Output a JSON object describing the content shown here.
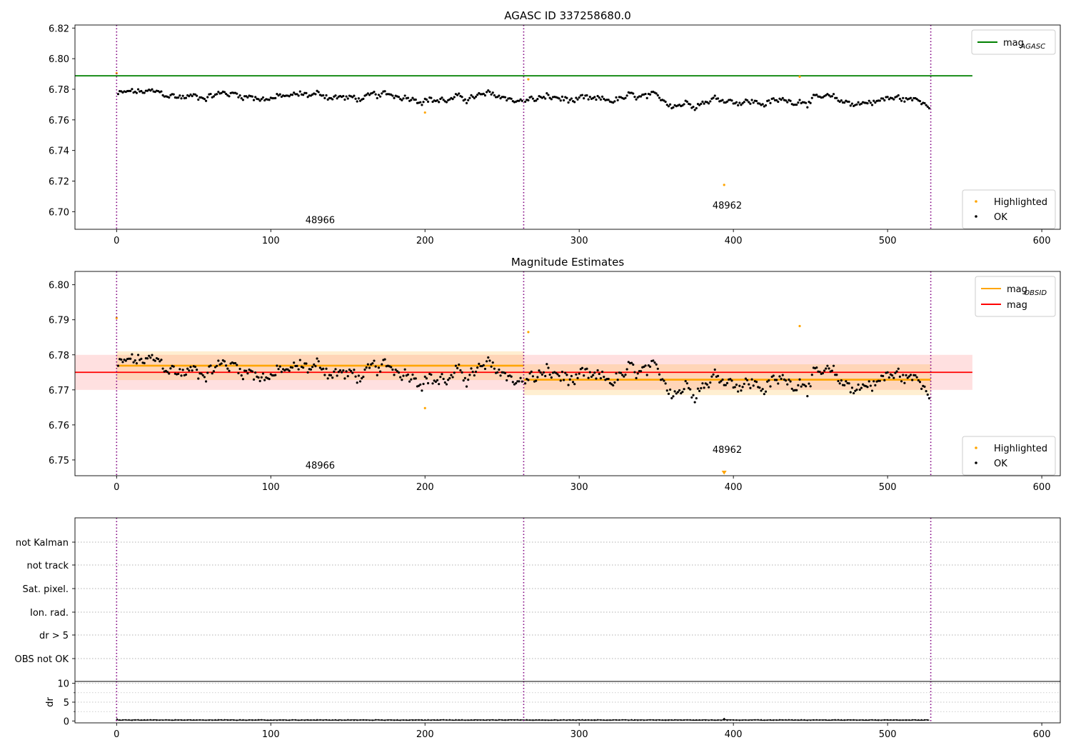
{
  "colors": {
    "agasc_line": "#008000",
    "obsid_line": "#ffa500",
    "mag_line": "#ff0000",
    "highlighted": "#ffa500",
    "ok": "#000000",
    "obs_boundary": "#800080",
    "grid": "#b0b0b0"
  },
  "chart_data": [
    {
      "type": "scatter",
      "title": "AGASC ID 337258680.0",
      "xlim": [
        -27,
        612
      ],
      "ylim": [
        6.6885,
        6.822
      ],
      "xticks": [
        "0",
        "100",
        "200",
        "300",
        "400",
        "500",
        "600"
      ],
      "yticks": [
        "6.70",
        "6.72",
        "6.74",
        "6.76",
        "6.78",
        "6.80",
        "6.82"
      ],
      "obs_boundaries": [
        0,
        264,
        528
      ],
      "obsid_labels": [
        {
          "text": "48966",
          "x": 132,
          "y": 6.6925
        },
        {
          "text": "48962",
          "x": 396,
          "y": 6.702
        }
      ],
      "mag_agasc": {
        "value": 6.7888,
        "x_range": [
          -27,
          555
        ]
      },
      "legend_top": [
        {
          "label": "mag",
          "sub": "AGASC",
          "color": "#008000"
        }
      ],
      "legend_bottom": [
        {
          "label": "Highlighted",
          "color": "#ffa500"
        },
        {
          "label": "OK",
          "color": "#000000"
        }
      ],
      "highlighted_points": [
        {
          "x": 0,
          "y": 6.7905
        },
        {
          "x": 200,
          "y": 6.7648
        },
        {
          "x": 267,
          "y": 6.7865
        },
        {
          "x": 394,
          "y": 6.7175
        },
        {
          "x": 443,
          "y": 6.7882
        }
      ],
      "ok_series": {
        "x_start": 1,
        "x_end": 527,
        "step": 1,
        "segments": [
          {
            "x0": 1,
            "x1": 263,
            "base": 6.7768,
            "wiggle": 0.0035,
            "drift": -0.003
          },
          {
            "x0": 265,
            "x1": 527,
            "base": 6.7729,
            "wiggle": 0.0038,
            "drift": -0.0005
          }
        ]
      }
    },
    {
      "type": "scatter",
      "title": "Magnitude Estimates",
      "xlim": [
        -27,
        612
      ],
      "ylim": [
        6.7455,
        6.8038
      ],
      "xticks": [
        "0",
        "100",
        "200",
        "300",
        "400",
        "500",
        "600"
      ],
      "yticks": [
        "6.75",
        "6.76",
        "6.77",
        "6.78",
        "6.79",
        "6.80"
      ],
      "obs_boundaries": [
        0,
        264,
        528
      ],
      "obsid_labels": [
        {
          "text": "48966",
          "x": 132,
          "y": 6.7475
        },
        {
          "text": "48962",
          "x": 396,
          "y": 6.752
        }
      ],
      "mag": {
        "value": 6.775,
        "band": [
          6.77,
          6.78
        ],
        "x_range": [
          -27,
          555
        ]
      },
      "mag_obsid": [
        {
          "x_range": [
            0,
            264
          ],
          "value": 6.7769,
          "band": [
            6.7728,
            6.781
          ]
        },
        {
          "x_range": [
            264,
            528
          ],
          "value": 6.7729,
          "band": [
            6.7685,
            6.7773
          ]
        }
      ],
      "legend_top": [
        {
          "label": "mag",
          "sub": "OBSID",
          "color": "#ffa500"
        },
        {
          "label": "mag",
          "sub": "",
          "color": "#ff0000"
        }
      ],
      "legend_bottom": [
        {
          "label": "Highlighted",
          "color": "#ffa500"
        },
        {
          "label": "OK",
          "color": "#000000"
        }
      ],
      "highlighted_points": [
        {
          "x": 0,
          "y": 6.7905
        },
        {
          "x": 200,
          "y": 6.7648
        },
        {
          "x": 267,
          "y": 6.7865
        },
        {
          "x": 443,
          "y": 6.7882
        }
      ],
      "offscale_markers": [
        {
          "x": 394,
          "marker": "down-triangle"
        }
      ]
    },
    {
      "type": "scatter",
      "title": "",
      "xlim": [
        -27,
        612
      ],
      "categories": [
        "not Kalman",
        "not track",
        "Sat. pixel.",
        "Ion. rad.",
        "dr > 5",
        "OBS not OK"
      ],
      "obs_boundaries": [
        0,
        264,
        528
      ],
      "flagged_points": []
    },
    {
      "type": "line",
      "title": "",
      "ylabel": "dr",
      "xlim": [
        -27,
        612
      ],
      "ylim": [
        -0.5,
        10.5
      ],
      "xticks": [
        "0",
        "100",
        "200",
        "300",
        "400",
        "500",
        "600"
      ],
      "yticks": [
        "0",
        "5",
        "10"
      ],
      "obs_boundaries": [
        0,
        264,
        528
      ],
      "dr_series": {
        "x_start": 0,
        "x_end": 527,
        "base": 0.25,
        "wiggle": 0.12
      }
    }
  ]
}
